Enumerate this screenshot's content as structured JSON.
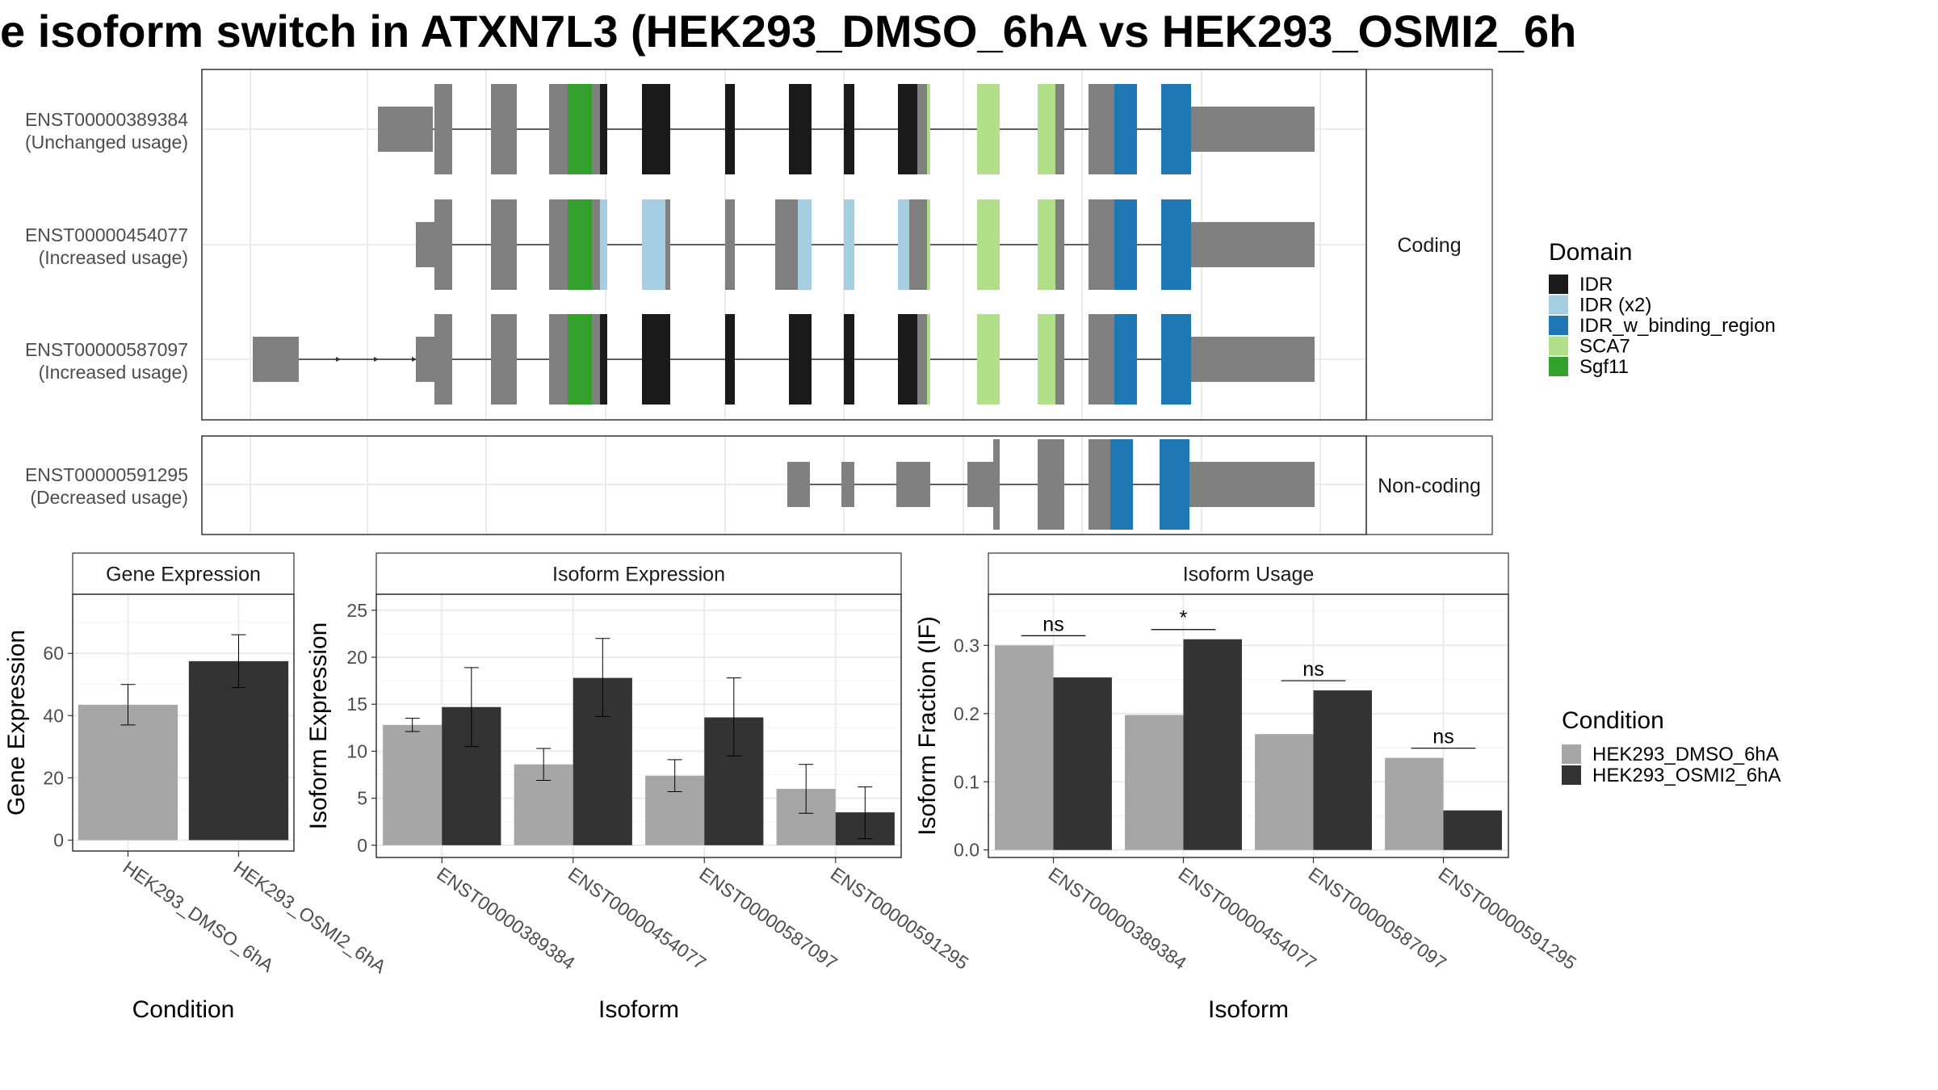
{
  "title": "e isoform switch in ATXN7L3 (HEK293_DMSO_6hA vs HEK293_OSMI2_6h",
  "structure": {
    "facets": [
      "Coding",
      "Non-coding"
    ],
    "transcripts": [
      {
        "id": "ENST00000389384",
        "usage": "(Unchanged usage)",
        "facet": 0
      },
      {
        "id": "ENST00000454077",
        "usage": "(Increased usage)",
        "facet": 0
      },
      {
        "id": "ENST00000587097",
        "usage": "(Increased usage)",
        "facet": 0
      },
      {
        "id": "ENST00000591295",
        "usage": "(Decreased usage)",
        "facet": 1
      }
    ],
    "domain_legend": {
      "title": "Domain",
      "items": [
        {
          "label": "IDR",
          "color": "#1a1a1a"
        },
        {
          "label": "IDR (x2)",
          "color": "#a6cee3"
        },
        {
          "label": "IDR_w_binding_region",
          "color": "#1f78b4"
        },
        {
          "label": "SCA7",
          "color": "#b2df8a"
        },
        {
          "label": "Sgf11",
          "color": "#33a02c"
        }
      ]
    },
    "utr_color": "#808080"
  },
  "chart_data": [
    {
      "type": "bar",
      "panel": "Gene Expression",
      "categories": [
        "HEK293_DMSO_6hA",
        "HEK293_OSMI2_6hA"
      ],
      "values": [
        43.5,
        57.5
      ],
      "error_low": [
        37,
        49
      ],
      "error_high": [
        50,
        66
      ],
      "xlabel": "Condition",
      "ylabel": "Gene Expression",
      "ylim": [
        -3.5,
        79
      ],
      "yticks": [
        0,
        20,
        40,
        60
      ],
      "colors": [
        "#a6a6a6",
        "#333333"
      ]
    },
    {
      "type": "bar",
      "panel": "Isoform Expression",
      "categories": [
        "ENST00000389384",
        "ENST00000454077",
        "ENST00000587097",
        "ENST00000591295"
      ],
      "series": [
        {
          "name": "HEK293_DMSO_6hA",
          "values": [
            12.8,
            8.6,
            7.4,
            6.0
          ],
          "error_low": [
            12.1,
            6.9,
            5.7,
            3.4
          ],
          "error_high": [
            13.5,
            10.3,
            9.1,
            8.6
          ]
        },
        {
          "name": "HEK293_OSMI2_6hA",
          "values": [
            14.7,
            17.8,
            13.6,
            3.5
          ],
          "error_low": [
            10.5,
            13.7,
            9.5,
            0.7
          ],
          "error_high": [
            18.9,
            22.0,
            17.8,
            6.2
          ]
        }
      ],
      "xlabel": "Isoform",
      "ylabel": "Isoform Expression",
      "ylim": [
        -1.3,
        26.7
      ],
      "yticks": [
        0,
        5,
        10,
        15,
        20,
        25
      ]
    },
    {
      "type": "bar",
      "panel": "Isoform Usage",
      "categories": [
        "ENST00000389384",
        "ENST00000454077",
        "ENST00000587097",
        "ENST00000591295"
      ],
      "series": [
        {
          "name": "HEK293_DMSO_6hA",
          "values": [
            0.3,
            0.198,
            0.17,
            0.135
          ]
        },
        {
          "name": "HEK293_OSMI2_6hA",
          "values": [
            0.253,
            0.309,
            0.234,
            0.058
          ]
        }
      ],
      "significance": [
        "ns",
        "*",
        "ns",
        "ns"
      ],
      "xlabel": "Isoform",
      "ylabel": "Isoform Fraction (IF)",
      "ylim": [
        -0.011,
        0.375
      ],
      "yticks": [
        0.0,
        0.1,
        0.2,
        0.3
      ],
      "ytick_labels": [
        "0.0",
        "0.1",
        "0.2",
        "0.3"
      ]
    }
  ],
  "condition_legend": {
    "title": "Condition",
    "items": [
      {
        "label": "HEK293_DMSO_6hA",
        "color": "#a6a6a6"
      },
      {
        "label": "HEK293_OSMI2_6hA",
        "color": "#333333"
      }
    ]
  }
}
